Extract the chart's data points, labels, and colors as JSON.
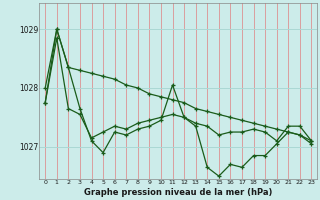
{
  "title": "Graphe pression niveau de la mer (hPa)",
  "background_color": "#ccecea",
  "grid_color_v": "#f08080",
  "grid_color_h": "#aad8d4",
  "line_color": "#1a5c1a",
  "x_labels": [
    0,
    1,
    2,
    3,
    4,
    5,
    6,
    7,
    8,
    9,
    10,
    11,
    12,
    13,
    14,
    15,
    16,
    17,
    18,
    19,
    20,
    21,
    22,
    23
  ],
  "y_ticks": [
    1027,
    1028,
    1029
  ],
  "ylim": [
    1026.45,
    1029.45
  ],
  "series_max": [
    1028.0,
    1029.0,
    1028.35,
    1028.3,
    1028.25,
    1028.2,
    1028.15,
    1028.05,
    1028.0,
    1027.9,
    1027.85,
    1027.8,
    1027.75,
    1027.65,
    1027.6,
    1027.55,
    1027.5,
    1027.45,
    1027.4,
    1027.35,
    1027.3,
    1027.25,
    1027.2,
    1027.1
  ],
  "series_mid": [
    1027.75,
    1028.85,
    1027.65,
    1027.55,
    1027.15,
    1027.25,
    1027.35,
    1027.3,
    1027.4,
    1027.45,
    1027.5,
    1027.55,
    1027.5,
    1027.4,
    1027.35,
    1027.2,
    1027.25,
    1027.25,
    1027.3,
    1027.25,
    1027.1,
    1027.35,
    1027.35,
    1027.1
  ],
  "series_min": [
    1027.75,
    1029.0,
    1028.35,
    1027.65,
    1027.1,
    1026.9,
    1027.25,
    1027.2,
    1027.3,
    1027.35,
    1027.45,
    1028.05,
    1027.5,
    1027.35,
    1026.65,
    1026.5,
    1026.7,
    1026.65,
    1026.85,
    1026.85,
    1027.05,
    1027.25,
    1027.2,
    1027.05
  ]
}
